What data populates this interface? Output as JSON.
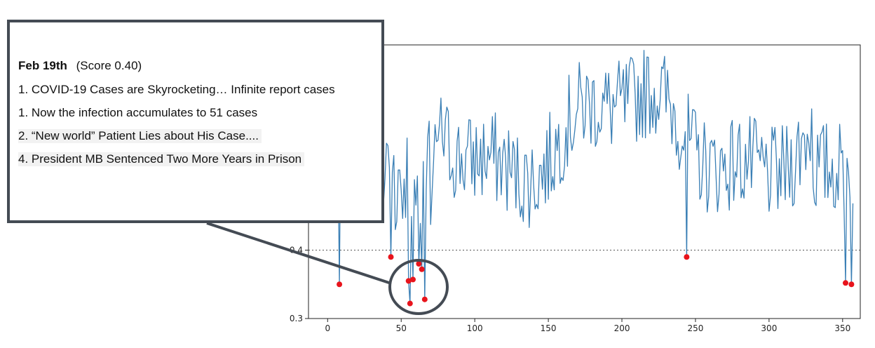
{
  "chart_data": {
    "type": "line",
    "title": "",
    "xlabel": "",
    "ylabel": "",
    "xlim": [
      -13,
      362
    ],
    "ylim": [
      0.3,
      0.7
    ],
    "xticks": [
      0,
      50,
      100,
      150,
      200,
      250,
      300,
      350
    ],
    "yticks": [
      0.3,
      0.4
    ],
    "threshold": 0.4,
    "grid": false,
    "colors": {
      "line": "#3a7fb5",
      "anomaly": "#e8141c",
      "threshold": "#555555",
      "callout_border": "#444b54"
    },
    "anomalies": [
      {
        "x": 8,
        "y": 0.35
      },
      {
        "x": 43,
        "y": 0.39
      },
      {
        "x": 55,
        "y": 0.355
      },
      {
        "x": 56,
        "y": 0.322
      },
      {
        "x": 58,
        "y": 0.357
      },
      {
        "x": 62,
        "y": 0.38
      },
      {
        "x": 64,
        "y": 0.372
      },
      {
        "x": 66,
        "y": 0.328
      },
      {
        "x": 244,
        "y": 0.39
      },
      {
        "x": 352,
        "y": 0.352
      },
      {
        "x": 356,
        "y": 0.35
      }
    ]
  },
  "callout": {
    "date": "Feb 19th",
    "score": "(Score 0.40)",
    "items": [
      "1. COVID-19 Cases are Skyrocketing… Infinite report cases",
      "1. Now the infection accumulates to 51 cases",
      "2. “New world” Patient Lies about His Case....",
      "4. President MB Sentenced Two More Years in Prison"
    ]
  }
}
